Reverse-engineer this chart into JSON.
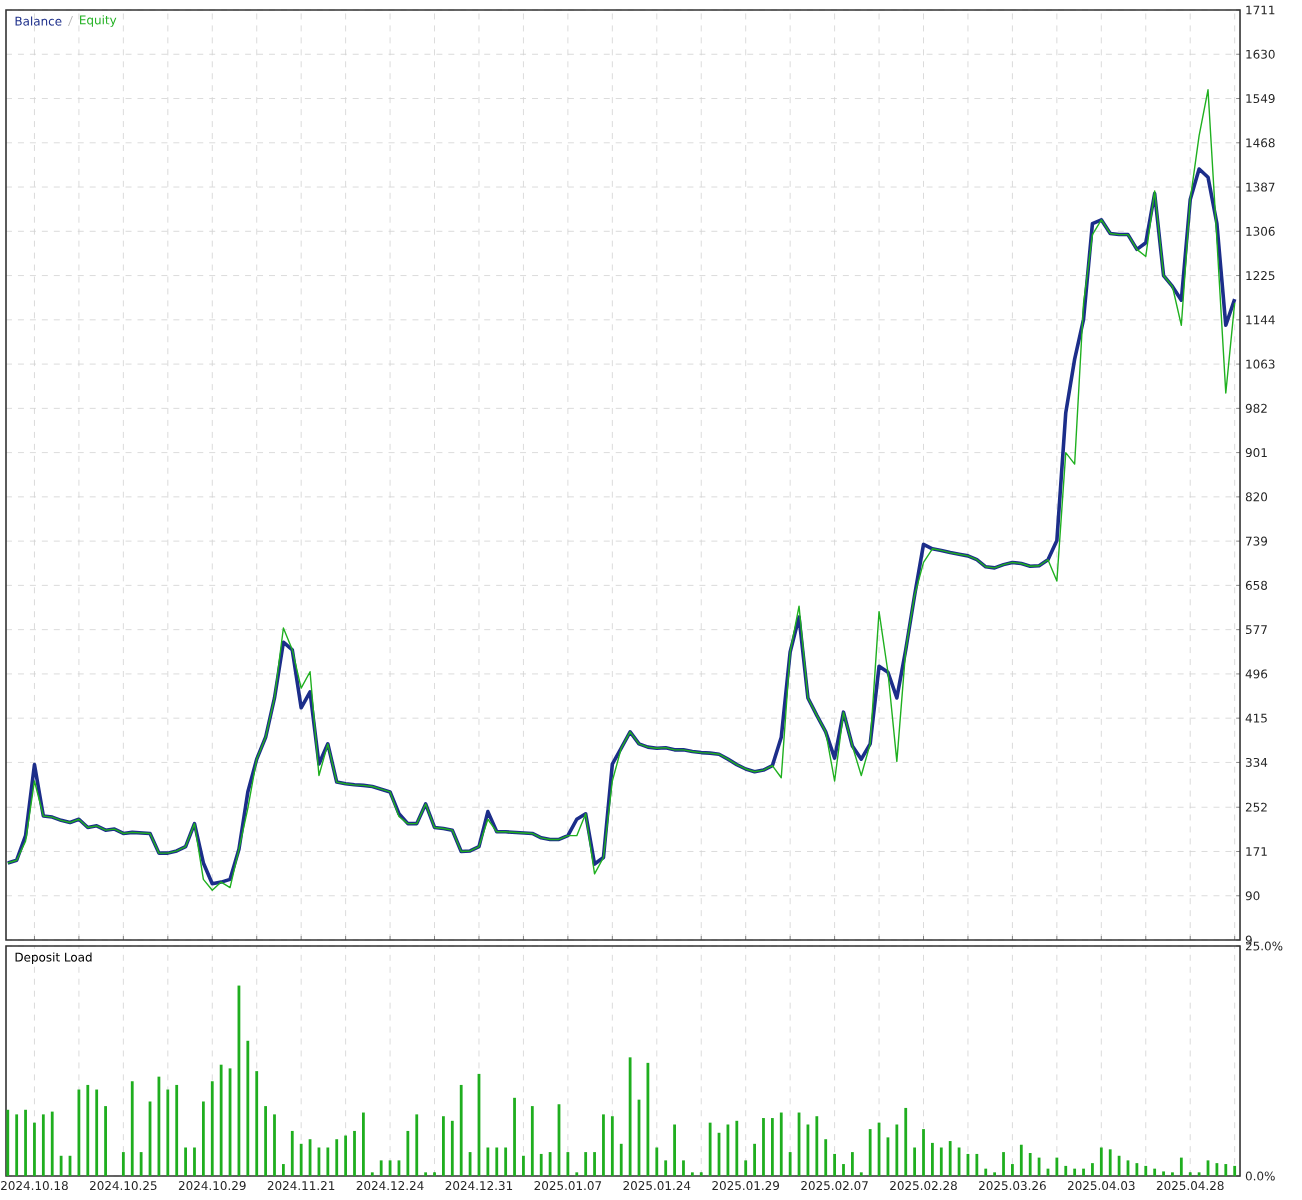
{
  "chart_data": [
    {
      "type": "line",
      "categories": [
        null,
        null,
        null,
        "2024.10.18",
        null,
        null,
        null,
        null,
        null,
        null,
        null,
        null,
        null,
        "2024.10.25",
        null,
        null,
        null,
        null,
        null,
        null,
        null,
        null,
        null,
        "2024.10.29",
        null,
        null,
        null,
        null,
        null,
        null,
        null,
        null,
        null,
        "2024.11.21",
        null,
        null,
        null,
        null,
        null,
        null,
        null,
        null,
        null,
        "2024.12.24",
        null,
        null,
        null,
        null,
        null,
        null,
        null,
        null,
        null,
        "2024.12.31",
        null,
        null,
        null,
        null,
        null,
        null,
        null,
        null,
        null,
        "2025.01.07",
        null,
        null,
        null,
        null,
        null,
        null,
        null,
        null,
        null,
        "2025.01.24",
        null,
        null,
        null,
        null,
        null,
        null,
        null,
        null,
        null,
        "2025.01.29",
        null,
        null,
        null,
        null,
        null,
        null,
        null,
        null,
        null,
        "2025.02.07",
        null,
        null,
        null,
        null,
        null,
        null,
        null,
        null,
        null,
        "2025.02.28",
        null,
        null,
        null,
        null,
        null,
        null,
        null,
        null,
        null,
        "2025.03.26",
        null,
        null,
        null,
        null,
        null,
        null,
        null,
        null,
        null,
        "2025.04.03",
        null,
        null,
        null,
        null,
        null,
        null,
        null,
        null,
        null,
        "2025.04.28",
        null,
        null,
        null,
        null,
        null
      ],
      "series": [
        {
          "name": "Balance",
          "color": "#1c2e8a",
          "values": [
            150,
            155,
            200,
            330,
            236,
            234,
            228,
            224,
            230,
            215,
            218,
            210,
            212,
            204,
            206,
            205,
            204,
            168,
            168,
            172,
            180,
            222,
            150,
            112,
            115,
            120,
            175,
            280,
            340,
            380,
            452,
            554,
            540,
            434,
            463,
            331,
            368,
            298,
            295,
            293,
            292,
            290,
            285,
            280,
            240,
            222,
            222,
            258,
            215,
            213,
            210,
            171,
            172,
            180,
            244,
            207,
            207,
            206,
            205,
            204,
            196,
            193,
            193,
            200,
            230,
            240,
            148,
            160,
            331,
            360,
            390,
            368,
            362,
            360,
            361,
            357,
            357,
            354,
            352,
            351,
            349,
            340,
            330,
            322,
            317,
            320,
            328,
            380,
            536,
            600,
            452,
            420,
            390,
            342,
            426,
            364,
            340,
            368,
            510,
            499,
            452,
            540,
            640,
            733,
            725,
            722,
            718,
            715,
            712,
            705,
            692,
            690,
            696,
            700,
            698,
            693,
            694,
            705,
            740,
            974,
            1072,
            1145,
            1320,
            1327,
            1302,
            1300,
            1300,
            1273,
            1285,
            1375,
            1225,
            1205,
            1180,
            1364,
            1420,
            1405,
            1320,
            1134,
            1182
          ]
        },
        {
          "name": "Equity",
          "color": "#1fb01f",
          "values": [
            150,
            155,
            190,
            300,
            236,
            234,
            228,
            224,
            230,
            215,
            218,
            210,
            212,
            204,
            206,
            205,
            204,
            168,
            168,
            172,
            180,
            222,
            120,
            100,
            115,
            105,
            175,
            250,
            340,
            380,
            452,
            580,
            540,
            470,
            500,
            310,
            368,
            298,
            295,
            293,
            292,
            290,
            285,
            280,
            235,
            222,
            222,
            258,
            215,
            213,
            210,
            171,
            172,
            180,
            230,
            207,
            207,
            206,
            205,
            204,
            196,
            193,
            193,
            200,
            200,
            240,
            130,
            160,
            300,
            360,
            390,
            368,
            362,
            360,
            361,
            357,
            357,
            354,
            352,
            351,
            349,
            340,
            330,
            322,
            317,
            320,
            328,
            306,
            536,
            620,
            452,
            420,
            390,
            300,
            426,
            364,
            310,
            368,
            610,
            499,
            336,
            540,
            640,
            700,
            725,
            722,
            718,
            715,
            712,
            705,
            692,
            690,
            696,
            700,
            698,
            693,
            694,
            705,
            666,
            901,
            880,
            1174,
            1300,
            1327,
            1302,
            1300,
            1300,
            1273,
            1260,
            1380,
            1225,
            1205,
            1134,
            1364,
            1481,
            1565,
            1290,
            1010,
            1175
          ]
        }
      ],
      "ylim": [
        9,
        1711
      ],
      "yticks": [
        9,
        90,
        171,
        252,
        334,
        415,
        496,
        577,
        658,
        739,
        820,
        901,
        982,
        1063,
        1144,
        1225,
        1306,
        1387,
        1468,
        1549,
        1630,
        1711
      ],
      "grid": true,
      "legend": "top left",
      "tick_labels": "y"
    },
    {
      "type": "bar",
      "title": "Deposit Load",
      "categories": [
        null,
        null,
        null,
        "2024.10.18",
        null,
        null,
        null,
        null,
        null,
        null,
        null,
        null,
        null,
        "2024.10.25",
        null,
        null,
        null,
        null,
        null,
        null,
        null,
        null,
        null,
        "2024.10.29",
        null,
        null,
        null,
        null,
        null,
        null,
        null,
        null,
        null,
        "2024.11.21",
        null,
        null,
        null,
        null,
        null,
        null,
        null,
        null,
        null,
        "2024.12.24",
        null,
        null,
        null,
        null,
        null,
        null,
        null,
        null,
        null,
        "2024.12.31",
        null,
        null,
        null,
        null,
        null,
        null,
        null,
        null,
        null,
        "2025.01.07",
        null,
        null,
        null,
        null,
        null,
        null,
        null,
        null,
        null,
        "2025.01.24",
        null,
        null,
        null,
        null,
        null,
        null,
        null,
        null,
        null,
        "2025.01.29",
        null,
        null,
        null,
        null,
        null,
        null,
        null,
        null,
        null,
        "2025.02.07",
        null,
        null,
        null,
        null,
        null,
        null,
        null,
        null,
        null,
        "2025.02.28",
        null,
        null,
        null,
        null,
        null,
        null,
        null,
        null,
        null,
        "2025.03.26",
        null,
        null,
        null,
        null,
        null,
        null,
        null,
        null,
        null,
        "2025.04.03",
        null,
        null,
        null,
        null,
        null,
        null,
        null,
        null,
        null,
        "2025.04.28",
        null,
        null,
        null,
        null,
        null
      ],
      "color": "#1fae1f",
      "values": [
        7.2,
        6.7,
        7.2,
        5.8,
        6.7,
        7.0,
        2.2,
        2.2,
        9.4,
        9.9,
        9.4,
        7.6,
        0,
        2.6,
        10.3,
        2.6,
        8.1,
        10.8,
        9.4,
        9.9,
        3.1,
        3.1,
        8.1,
        10.3,
        12.1,
        11.7,
        20.7,
        14.7,
        11.4,
        7.6,
        6.7,
        1.3,
        4.9,
        3.5,
        4.0,
        3.1,
        3.1,
        4.0,
        4.4,
        4.9,
        6.9,
        0.4,
        1.7,
        1.7,
        1.7,
        4.9,
        6.7,
        0.4,
        0.4,
        6.5,
        6.0,
        9.9,
        2.6,
        11.1,
        3.1,
        3.1,
        3.1,
        8.5,
        2.2,
        7.6,
        2.4,
        2.6,
        7.8,
        2.6,
        0.4,
        2.6,
        2.6,
        6.7,
        6.5,
        3.5,
        12.9,
        8.3,
        12.3,
        3.1,
        1.7,
        5.6,
        1.7,
        0.4,
        0.4,
        5.8,
        4.7,
        5.6,
        6.0,
        1.7,
        3.5,
        6.3,
        6.3,
        6.9,
        2.6,
        6.9,
        5.6,
        6.5,
        4.0,
        2.4,
        1.3,
        2.6,
        0.4,
        5.1,
        5.8,
        4.2,
        5.6,
        7.4,
        3.1,
        5.1,
        3.6,
        3.1,
        3.8,
        3.1,
        2.4,
        2.4,
        0.8,
        0.4,
        2.6,
        1.3,
        3.4,
        2.5,
        2.0,
        0.8,
        2.0,
        1.1,
        0.8,
        0.8,
        1.4,
        3.1,
        2.9,
        2.2,
        1.7,
        1.4,
        1.1,
        0.8,
        0.5,
        0.4,
        2.0,
        0.4,
        0.4,
        1.7,
        1.4,
        1.3,
        1.1
      ],
      "ylim": [
        0,
        25
      ],
      "yticks": [
        {
          "value": 0,
          "label": "0.0%"
        },
        {
          "value": 25,
          "label": "25.0%"
        }
      ],
      "grid": true
    }
  ]
}
